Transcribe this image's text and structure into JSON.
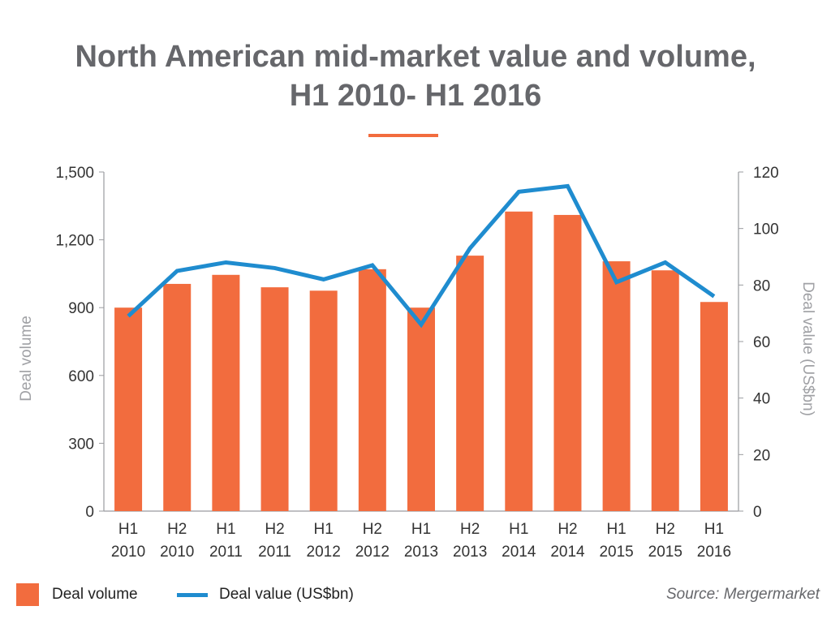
{
  "title": {
    "line1": "North American mid-market value and volume,",
    "line2": "H1 2010- H1 2016"
  },
  "colors": {
    "bar": "#f26c3e",
    "line": "#1f8ccf",
    "title": "#66676b",
    "axis": "#9a9b9f"
  },
  "chart_data": {
    "type": "bar+line",
    "title": "North American mid-market value and volume, H1 2010- H1 2016",
    "categories": [
      [
        "H1",
        "2010"
      ],
      [
        "H2",
        "2010"
      ],
      [
        "H1",
        "2011"
      ],
      [
        "H2",
        "2011"
      ],
      [
        "H1",
        "2012"
      ],
      [
        "H2",
        "2012"
      ],
      [
        "H1",
        "2013"
      ],
      [
        "H2",
        "2013"
      ],
      [
        "H1",
        "2014"
      ],
      [
        "H2",
        "2014"
      ],
      [
        "H1",
        "2015"
      ],
      [
        "H2",
        "2015"
      ],
      [
        "H1",
        "2016"
      ]
    ],
    "series": [
      {
        "name": "Deal volume",
        "type": "bar",
        "axis": "left",
        "values": [
          900,
          1005,
          1045,
          990,
          975,
          1070,
          900,
          1130,
          1325,
          1310,
          1105,
          1065,
          925
        ]
      },
      {
        "name": "Deal value (US$bn)",
        "type": "line",
        "axis": "right",
        "values": [
          69,
          85,
          88,
          86,
          82,
          87,
          66,
          93,
          113,
          115,
          81,
          88,
          76
        ]
      }
    ],
    "left_axis": {
      "label": "Deal volume",
      "range": [
        0,
        1500
      ],
      "ticks": [
        0,
        300,
        600,
        900,
        1200,
        1500
      ],
      "tick_labels": [
        "0",
        "300",
        "600",
        "900",
        "1,200",
        "1,500"
      ]
    },
    "right_axis": {
      "label": "Deal value (US$bn)",
      "range": [
        0,
        120
      ],
      "ticks": [
        0,
        20,
        40,
        60,
        80,
        100,
        120
      ],
      "tick_labels": [
        "0",
        "20",
        "40",
        "60",
        "80",
        "100",
        "120"
      ]
    },
    "legend": [
      "Deal volume",
      "Deal value (US$bn)"
    ],
    "legend_position": "bottom-left",
    "grid": false
  },
  "source": "Source: Mergermarket"
}
